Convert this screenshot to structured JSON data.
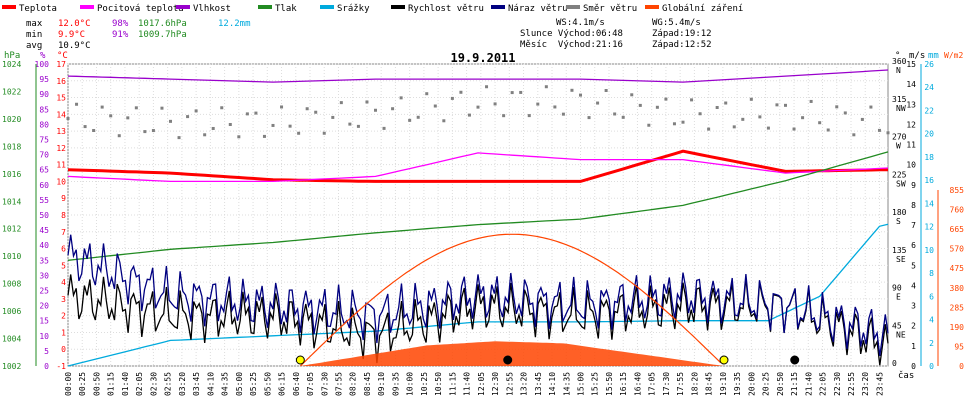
{
  "legend": [
    {
      "label": "Teplota",
      "color": "#ff0000"
    },
    {
      "label": "Pocitová teplota",
      "color": "#ff00ff"
    },
    {
      "label": "Vlhkost",
      "color": "#9900cc"
    },
    {
      "label": "Tlak",
      "color": "#228b22"
    },
    {
      "label": "Srážky",
      "color": "#00aadd"
    },
    {
      "label": "Rychlost větru",
      "color": "#000000"
    },
    {
      "label": "Náraz větru",
      "color": "#000080"
    },
    {
      "label": "Směr větru",
      "color": "#808080"
    },
    {
      "label": "Globální záření",
      "color": "#ff4400"
    }
  ],
  "stats": {
    "max_label": "max",
    "max_temp": "12.0°C",
    "max_hum": "98%",
    "max_press": "1017.6hPa",
    "max_rain": "12.2mm",
    "min_label": "min",
    "min_temp": "9.9°C",
    "min_hum": "91%",
    "min_press": "1009.7hPa",
    "avg_label": "avg",
    "avg_temp": "10.9°C"
  },
  "info": {
    "ws": "WS:4.1m/s",
    "wg": "WG:5.4m/s",
    "slunce": "Slunce Východ:06:48",
    "slunce_zapad": "Západ:19:12",
    "mesic": "Měsíc  Východ:21:16",
    "mesic_zapad": "Západ:12:52"
  },
  "date": "19.9.2011",
  "time_label": "čas",
  "axis_units": {
    "hpa": "hPa",
    "pct": "%",
    "degc": "°C",
    "deg": "°",
    "ms": "m/s",
    "mm": "mm",
    "wm2": "W/m2"
  },
  "chart_data": {
    "type": "line",
    "title": "19.9.2011",
    "x_labels": [
      "00:00",
      "00:25",
      "00:50",
      "01:15",
      "01:40",
      "02:05",
      "02:30",
      "02:55",
      "03:20",
      "03:45",
      "04:10",
      "04:35",
      "05:00",
      "05:25",
      "05:50",
      "06:15",
      "06:40",
      "07:05",
      "07:30",
      "07:55",
      "08:20",
      "08:45",
      "09:10",
      "09:35",
      "10:00",
      "10:25",
      "10:50",
      "11:15",
      "11:40",
      "12:05",
      "12:30",
      "12:55",
      "13:20",
      "13:45",
      "14:10",
      "14:35",
      "15:00",
      "15:25",
      "15:50",
      "16:15",
      "16:40",
      "17:05",
      "17:30",
      "17:55",
      "18:20",
      "18:45",
      "19:10",
      "19:35",
      "20:00",
      "20:25",
      "20:50",
      "21:15",
      "21:40",
      "22:05",
      "22:30",
      "22:55",
      "23:20",
      "23:45"
    ],
    "axes": {
      "pressure_hpa": {
        "min": 1002,
        "max": 1024,
        "ticks": [
          1002,
          1004,
          1006,
          1008,
          1010,
          1012,
          1014,
          1016,
          1018,
          1020,
          1022,
          1024
        ]
      },
      "humidity_pct": {
        "min": 0,
        "max": 100,
        "ticks": [
          0,
          5,
          10,
          15,
          20,
          25,
          30,
          35,
          40,
          45,
          50,
          55,
          60,
          65,
          70,
          75,
          80,
          85,
          90,
          95,
          100
        ]
      },
      "temperature_c": {
        "min": -1,
        "max": 17,
        "ticks": [
          -1,
          0,
          1,
          2,
          3,
          4,
          5,
          6,
          7,
          8,
          9,
          10,
          11,
          12,
          13,
          14,
          15,
          16,
          17
        ]
      },
      "wind_dir_deg": {
        "min": 0,
        "max": 360,
        "ticks": [
          0,
          45,
          90,
          135,
          180,
          225,
          270,
          315,
          360
        ],
        "labels": [
          "",
          "NE",
          "E",
          "SE",
          "S",
          "SW",
          "W",
          "NW",
          "N"
        ]
      },
      "wind_ms": {
        "min": 0,
        "max": 15,
        "ticks": [
          0,
          1,
          2,
          3,
          4,
          5,
          6,
          7,
          8,
          9,
          10,
          11,
          12,
          13,
          14,
          15
        ]
      },
      "rain_mm": {
        "min": 0,
        "max": 26,
        "ticks": [
          0,
          2,
          4,
          6,
          8,
          10,
          12,
          14,
          16,
          18,
          20,
          22,
          24,
          26
        ]
      },
      "radiation_wm2": {
        "min": 0,
        "max": 855,
        "ticks": [
          0,
          95,
          190,
          285,
          380,
          475,
          570,
          665,
          760,
          855
        ]
      }
    },
    "series": [
      {
        "name": "Teplota",
        "unit": "°C",
        "x": [
          0,
          3,
          6,
          9,
          12,
          15,
          18,
          21,
          24
        ],
        "y": [
          10.7,
          10.5,
          10.1,
          10.0,
          10.0,
          10.0,
          11.8,
          10.6,
          10.7
        ]
      },
      {
        "name": "Pocitová teplota",
        "unit": "°C",
        "x": [
          0,
          3,
          6,
          9,
          12,
          15,
          18,
          21,
          24
        ],
        "y": [
          10.3,
          10.0,
          10.0,
          10.3,
          11.7,
          11.3,
          11.3,
          10.5,
          10.8
        ]
      },
      {
        "name": "Vlhkost",
        "unit": "%",
        "x": [
          0,
          3,
          6,
          9,
          12,
          15,
          18,
          21,
          24
        ],
        "y": [
          96,
          95,
          94,
          95,
          95,
          95,
          94,
          96,
          98
        ]
      },
      {
        "name": "Tlak",
        "unit": "hPa",
        "x": [
          0,
          3,
          6,
          9,
          12,
          15,
          18,
          21,
          24
        ],
        "y": [
          1009.7,
          1010.5,
          1011.0,
          1011.7,
          1012.3,
          1012.7,
          1013.7,
          1015.5,
          1017.6
        ]
      },
      {
        "name": "Srážky",
        "unit": "mm",
        "x": [
          0,
          3,
          6,
          9,
          12,
          15,
          18,
          20.5,
          22,
          23.8
        ],
        "y": [
          0,
          2.2,
          2.6,
          3.0,
          3.8,
          3.8,
          3.9,
          3.9,
          6,
          12.2
        ]
      },
      {
        "name": "Rychlost větru",
        "unit": "m/s",
        "x": [
          0,
          3,
          6,
          9,
          12,
          15,
          18,
          21,
          24
        ],
        "y": [
          3.5,
          2.5,
          2.5,
          1.5,
          3.0,
          2.5,
          3.0,
          3.0,
          1.0
        ]
      },
      {
        "name": "Náraz větru",
        "unit": "m/s",
        "x": [
          0,
          3,
          6,
          9,
          12,
          15,
          18,
          21,
          24
        ],
        "y": [
          5.5,
          3.5,
          3.0,
          2.5,
          3.5,
          3.0,
          3.5,
          3.0,
          1.5
        ]
      },
      {
        "name": "Směr větru",
        "unit": "°",
        "x": [
          0,
          3,
          6,
          9,
          12,
          15,
          18,
          21,
          24
        ],
        "y": [
          295,
          290,
          290,
          300,
          315,
          315,
          300,
          300,
          290
        ]
      },
      {
        "name": "Globální záření",
        "unit": "W/m2",
        "x": [
          0,
          6.8,
          10.5,
          12.5,
          14.5,
          19.2,
          24
        ],
        "y": [
          0,
          0,
          100,
          120,
          110,
          0,
          0
        ]
      }
    ]
  }
}
